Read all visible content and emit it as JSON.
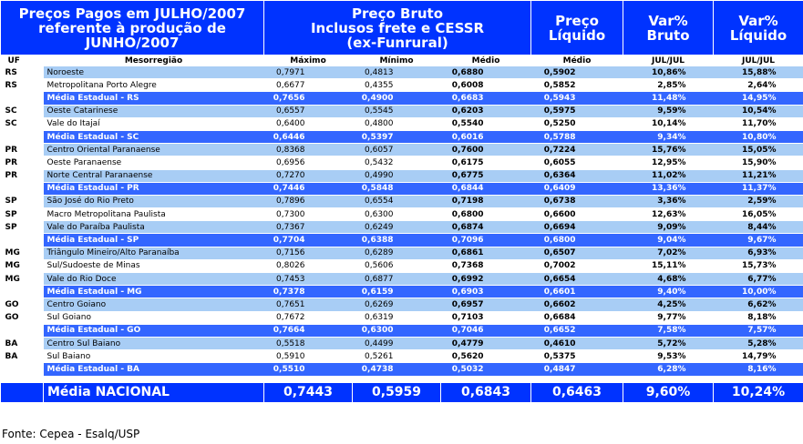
{
  "header": {
    "title": [
      "Preços Pagos em JULHO/2007",
      "referente à produção de",
      "JUNHO/2007"
    ],
    "preco_bruto": [
      "Preço Bruto",
      "Inclusos frete e CESSR",
      "(ex-Funrural)"
    ],
    "preco_liquido": [
      "Preço",
      "Líquido"
    ],
    "var_bruto": [
      "Var%",
      "Bruto"
    ],
    "var_liquido": [
      "Var%",
      "Líquido"
    ]
  },
  "subheader": {
    "uf": "UF",
    "mesorregiao": "Mesorregião",
    "maximo": "Máximo",
    "minimo": "Mínimo",
    "medio_bruto": "Médio",
    "medio_liquido": "Médio",
    "jul_bruto": "JUL/JUL",
    "jul_liquido": "JUL/JUL"
  },
  "rows": [
    {
      "type": "light",
      "uf": "RS",
      "meso": "Noroeste",
      "max": "0,7971",
      "min": "0,4813",
      "med": "0,6880",
      "liq": "0,5902",
      "vb": "10,86%",
      "vl": "15,88%"
    },
    {
      "type": "white",
      "uf": "RS",
      "meso": "Metropolitana Porto Alegre",
      "max": "0,6677",
      "min": "0,4355",
      "med": "0,6008",
      "liq": "0,5852",
      "vb": "2,85%",
      "vl": "2,64%"
    },
    {
      "type": "avg",
      "uf": "",
      "meso": "Média Estadual - RS",
      "max": "0,7656",
      "min": "0,4900",
      "med": "0,6683",
      "liq": "0,5943",
      "vb": "11,48%",
      "vl": "14,95%"
    },
    {
      "type": "light",
      "uf": "SC",
      "meso": "Oeste Catarinese",
      "max": "0,6557",
      "min": "0,5545",
      "med": "0,6203",
      "liq": "0,5975",
      "vb": "9,59%",
      "vl": "10,54%"
    },
    {
      "type": "white",
      "uf": "SC",
      "meso": "Vale do Itajaí",
      "max": "0,6400",
      "min": "0,4800",
      "med": "0,5540",
      "liq": "0,5250",
      "vb": "10,14%",
      "vl": "11,70%"
    },
    {
      "type": "avg",
      "uf": "",
      "meso": "Média Estadual - SC",
      "max": "0,6446",
      "min": "0,5397",
      "med": "0,6016",
      "liq": "0,5788",
      "vb": "9,34%",
      "vl": "10,80%"
    },
    {
      "type": "light",
      "uf": "PR",
      "meso": "Centro Oriental Paranaense",
      "max": "0,8368",
      "min": "0,6057",
      "med": "0,7600",
      "liq": "0,7224",
      "vb": "15,76%",
      "vl": "15,05%"
    },
    {
      "type": "white",
      "uf": "PR",
      "meso": "Oeste Paranaense",
      "max": "0,6956",
      "min": "0,5432",
      "med": "0,6175",
      "liq": "0,6055",
      "vb": "12,95%",
      "vl": "15,90%"
    },
    {
      "type": "light",
      "uf": "PR",
      "meso": "Norte Central Paranaense",
      "max": "0,7270",
      "min": "0,4990",
      "med": "0,6775",
      "liq": "0,6364",
      "vb": "11,02%",
      "vl": "11,21%"
    },
    {
      "type": "avg",
      "uf": "",
      "meso": "Média Estadual - PR",
      "max": "0,7446",
      "min": "0,5848",
      "med": "0,6844",
      "liq": "0,6409",
      "vb": "13,36%",
      "vl": "11,37%"
    },
    {
      "type": "light",
      "uf": "SP",
      "meso": "São José do Rio Preto",
      "max": "0,7896",
      "min": "0,6554",
      "med": "0,7198",
      "liq": "0,6738",
      "vb": "3,36%",
      "vl": "2,59%"
    },
    {
      "type": "white",
      "uf": "SP",
      "meso": "Macro Metropolitana Paulista",
      "max": "0,7300",
      "min": "0,6300",
      "med": "0,6800",
      "liq": "0,6600",
      "vb": "12,63%",
      "vl": "16,05%"
    },
    {
      "type": "light",
      "uf": "SP",
      "meso": "Vale do Paraíba Paulista",
      "max": "0,7367",
      "min": "0,6249",
      "med": "0,6874",
      "liq": "0,6694",
      "vb": "9,09%",
      "vl": "8,44%"
    },
    {
      "type": "avg",
      "uf": "",
      "meso": "Média Estadual - SP",
      "max": "0,7704",
      "min": "0,6388",
      "med": "0,7096",
      "liq": "0,6800",
      "vb": "9,04%",
      "vl": "9,67%"
    },
    {
      "type": "light",
      "uf": "MG",
      "meso": "Triângulo Mineiro/Alto Paranaíba",
      "max": "0,7156",
      "min": "0,6289",
      "med": "0,6861",
      "liq": "0,6507",
      "vb": "7,02%",
      "vl": "6,93%"
    },
    {
      "type": "white",
      "uf": "MG",
      "meso": "Sul/Sudoeste de Minas",
      "max": "0,8026",
      "min": "0,5606",
      "med": "0,7368",
      "liq": "0,7002",
      "vb": "15,11%",
      "vl": "15,73%"
    },
    {
      "type": "light",
      "uf": "MG",
      "meso": "Vale do Rio Doce",
      "max": "0,7453",
      "min": "0,6877",
      "med": "0,6992",
      "liq": "0,6654",
      "vb": "4,68%",
      "vl": "6,77%"
    },
    {
      "type": "avg",
      "uf": "",
      "meso": "Média Estadual - MG",
      "max": "0,7378",
      "min": "0,6159",
      "med": "0,6903",
      "liq": "0,6601",
      "vb": "9,40%",
      "vl": "10,00%"
    },
    {
      "type": "light",
      "uf": "GO",
      "meso": "Centro Goiano",
      "max": "0,7651",
      "min": "0,6269",
      "med": "0,6957",
      "liq": "0,6602",
      "vb": "4,25%",
      "vl": "6,62%"
    },
    {
      "type": "white",
      "uf": "GO",
      "meso": "Sul Goiano",
      "max": "0,7672",
      "min": "0,6319",
      "med": "0,7103",
      "liq": "0,6684",
      "vb": "9,77%",
      "vl": "8,18%"
    },
    {
      "type": "avg",
      "uf": "",
      "meso": "Média Estadual - GO",
      "max": "0,7664",
      "min": "0,6300",
      "med": "0,7046",
      "liq": "0,6652",
      "vb": "7,58%",
      "vl": "7,57%"
    },
    {
      "type": "light",
      "uf": "BA",
      "meso": "Centro Sul Baiano",
      "max": "0,5518",
      "min": "0,4499",
      "med": "0,4779",
      "liq": "0,4610",
      "vb": "5,72%",
      "vl": "5,28%"
    },
    {
      "type": "white",
      "uf": "BA",
      "meso": "Sul Baiano",
      "max": "0,5910",
      "min": "0,5261",
      "med": "0,5620",
      "liq": "0,5375",
      "vb": "9,53%",
      "vl": "14,79%"
    },
    {
      "type": "avg",
      "uf": "",
      "meso": "Média Estadual - BA",
      "max": "0,5510",
      "min": "0,4738",
      "med": "0,5032",
      "liq": "0,4847",
      "vb": "6,28%",
      "vl": "8,16%"
    }
  ],
  "national": {
    "label": "Média NACIONAL",
    "max": "0,7443",
    "min": "0,5959",
    "med": "0,6843",
    "liq": "0,6463",
    "vb": "9,60%",
    "vl": "10,24%"
  },
  "source": "Fonte: Cepea - Esalq/USP"
}
